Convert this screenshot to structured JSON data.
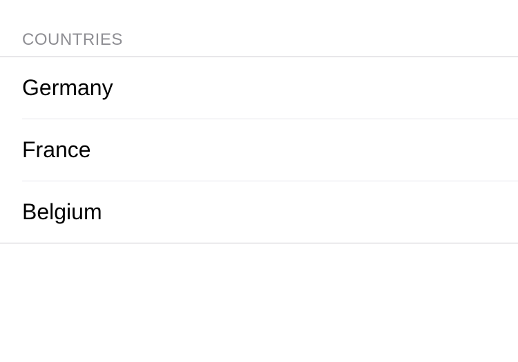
{
  "section": {
    "title": "COUNTRIES",
    "items": [
      {
        "label": "Germany"
      },
      {
        "label": "France"
      },
      {
        "label": "Belgium"
      }
    ]
  },
  "style": {
    "type": "table",
    "background_color": "#ffffff",
    "header_text_color": "#8e8e93",
    "header_font_size": 24,
    "item_text_color": "#000000",
    "item_font_size": 32,
    "outer_separator_color": "#c8c7cc",
    "inner_separator_color": "#e5e5ea",
    "separator_left_inset": 32
  }
}
